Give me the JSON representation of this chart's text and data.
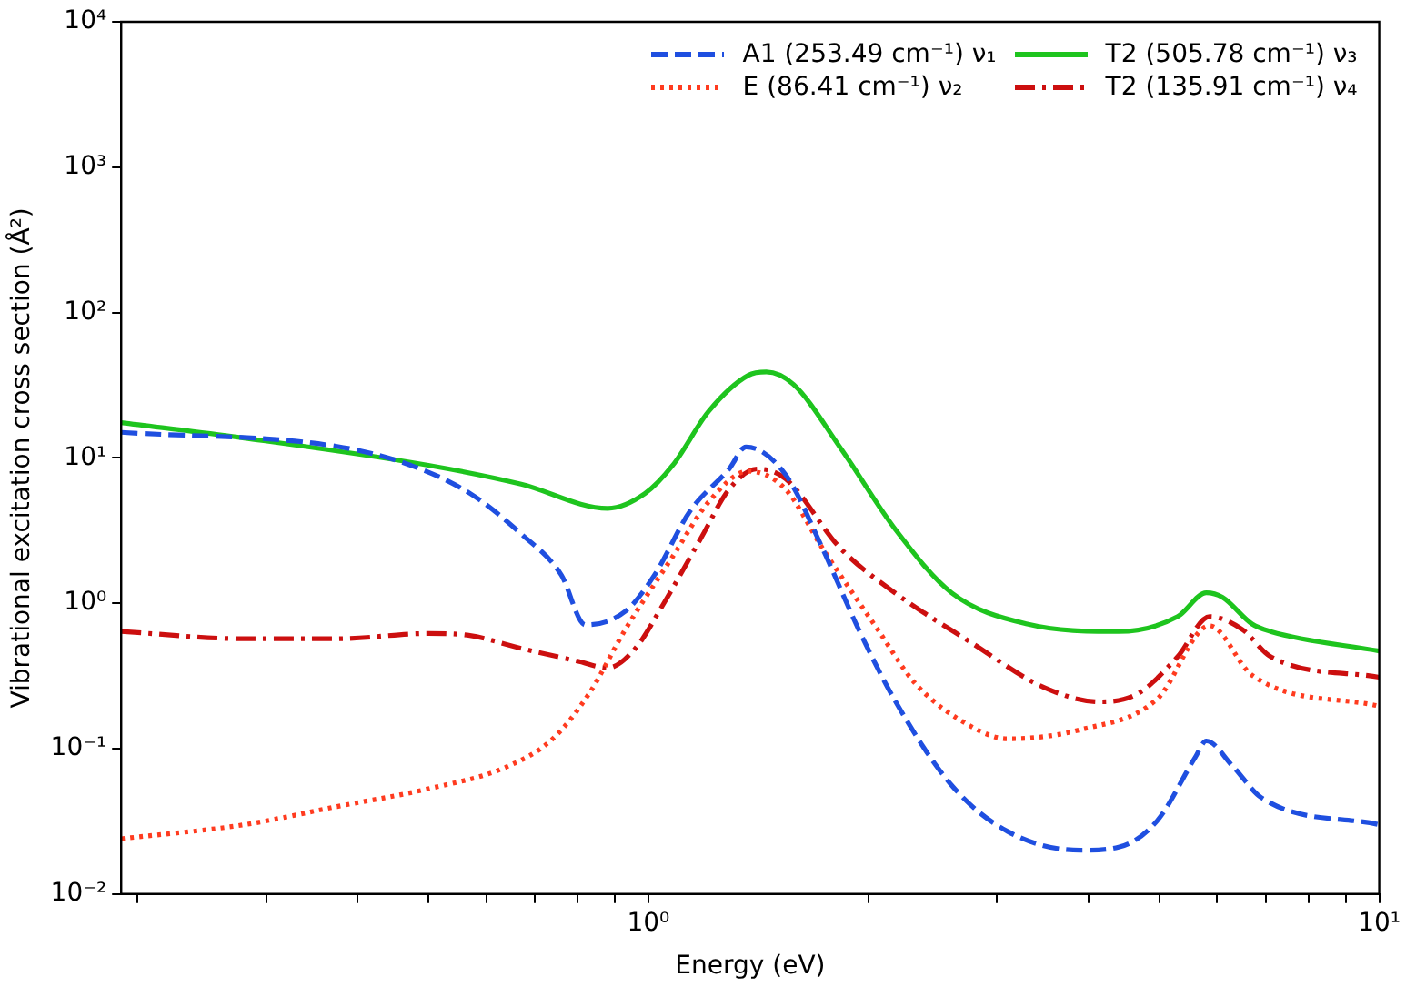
{
  "chart_data": {
    "type": "line",
    "xlabel": "Energy (eV)",
    "ylabel": "Vibrational excitation cross section (Å²)",
    "log": "xy",
    "grid": false,
    "legend": "top right",
    "marker": "none",
    "xlim": [
      0.19,
      10
    ],
    "ylim": [
      0.01,
      10000
    ],
    "xticks": [
      {
        "value": 0.2,
        "label": null
      },
      {
        "value": 0.3,
        "label": null
      },
      {
        "value": 0.4,
        "label": null
      },
      {
        "value": 0.5,
        "label": null
      },
      {
        "value": 0.6,
        "label": null
      },
      {
        "value": 0.7,
        "label": null
      },
      {
        "value": 0.8,
        "label": null
      },
      {
        "value": 0.9,
        "label": null
      },
      {
        "value": 1,
        "label": "10⁰"
      },
      {
        "value": 2,
        "label": null
      },
      {
        "value": 3,
        "label": null
      },
      {
        "value": 4,
        "label": null
      },
      {
        "value": 5,
        "label": null
      },
      {
        "value": 6,
        "label": null
      },
      {
        "value": 7,
        "label": null
      },
      {
        "value": 8,
        "label": null
      },
      {
        "value": 9,
        "label": null
      },
      {
        "value": 10,
        "label": "10¹"
      }
    ],
    "yticks": [
      {
        "value": 0.01,
        "label": "10⁻²"
      },
      {
        "value": 0.1,
        "label": "10⁻¹"
      },
      {
        "value": 1,
        "label": "10⁰"
      },
      {
        "value": 10,
        "label": "10¹"
      },
      {
        "value": 100,
        "label": "10²"
      },
      {
        "value": 1000,
        "label": "10³"
      },
      {
        "value": 10000,
        "label": "10⁴"
      }
    ],
    "series": [
      {
        "name": "A1 (253.49 cm⁻¹) ν₁",
        "color": "#1f4fe0",
        "line_style": "dashed",
        "x": [
          0.19,
          0.375,
          0.47,
          0.57,
          0.67,
          0.76,
          0.82,
          0.93,
          1.02,
          1.14,
          1.29,
          1.36,
          1.54,
          1.73,
          1.94,
          2.18,
          2.6,
          3.1,
          3.9,
          4.4,
          4.97,
          5.6,
          5.8,
          6.3,
          6.9,
          10
        ],
        "values": [
          15,
          12,
          9,
          5.7,
          3.0,
          1.57,
          0.71,
          0.88,
          1.57,
          4.3,
          8.4,
          11.9,
          7.7,
          2.4,
          0.66,
          0.21,
          0.056,
          0.027,
          0.02,
          0.021,
          0.032,
          0.087,
          0.113,
          0.076,
          0.046,
          0.03
        ]
      },
      {
        "name": "E (86.41 cm⁻¹) ν₂",
        "color": "#ff3b1f",
        "line_style": "dotted",
        "x": [
          0.19,
          0.28,
          0.375,
          0.5,
          0.64,
          0.74,
          0.83,
          0.93,
          1.08,
          1.21,
          1.37,
          1.54,
          1.73,
          2.06,
          2.32,
          2.76,
          3.1,
          3.9,
          4.97,
          5.86,
          6.7,
          10
        ],
        "values": [
          0.024,
          0.03,
          0.04,
          0.053,
          0.075,
          0.117,
          0.24,
          0.66,
          2.1,
          5.0,
          8.1,
          6.1,
          2.4,
          0.66,
          0.28,
          0.143,
          0.117,
          0.135,
          0.22,
          0.7,
          0.32,
          0.196
        ]
      },
      {
        "name": "T2 (505.78 cm⁻¹) ν₃",
        "color": "#1ec41e",
        "line_style": "solid",
        "x": [
          0.19,
          0.28,
          0.5,
          0.67,
          0.88,
          0.99,
          1.08,
          1.21,
          1.37,
          1.45,
          1.58,
          1.83,
          2.18,
          2.6,
          3.3,
          4.4,
          5.3,
          5.8,
          6.1,
          6.7,
          7.1,
          10
        ],
        "values": [
          17.5,
          13.7,
          8.9,
          6.6,
          4.5,
          5.7,
          8.9,
          21,
          37,
          39,
          32,
          11.8,
          3.2,
          1.18,
          0.72,
          0.64,
          0.81,
          1.18,
          1.1,
          0.72,
          0.64,
          0.47
        ]
      },
      {
        "name": "T2 (135.91 cm⁻¹) ν₄",
        "color": "#cc0f0f",
        "line_style": "dashdot",
        "x": [
          0.19,
          0.28,
          0.375,
          0.5,
          0.57,
          0.67,
          0.8,
          0.88,
          0.96,
          1.05,
          1.18,
          1.29,
          1.41,
          1.54,
          1.83,
          2.18,
          2.76,
          3.5,
          4.16,
          4.68,
          5.3,
          5.86,
          6.5,
          7.1,
          10
        ],
        "values": [
          0.64,
          0.57,
          0.57,
          0.62,
          0.6,
          0.49,
          0.4,
          0.36,
          0.49,
          1.0,
          2.8,
          6.1,
          8.4,
          7.2,
          2.4,
          1.17,
          0.54,
          0.26,
          0.21,
          0.24,
          0.43,
          0.81,
          0.66,
          0.43,
          0.31
        ]
      }
    ]
  }
}
